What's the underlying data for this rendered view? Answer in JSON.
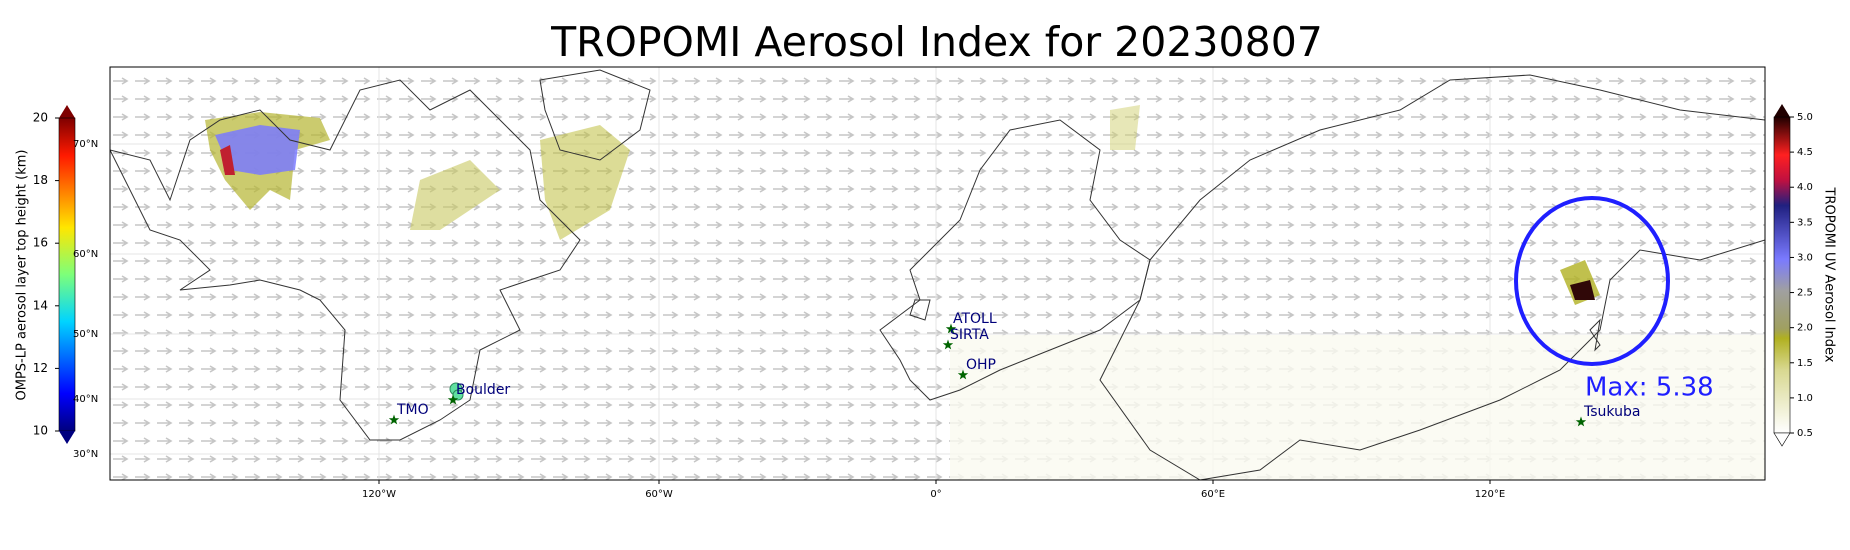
{
  "title": "TROPOMI Aerosol Index for 20230807",
  "left_colorbar": {
    "label": "OMPS-LP aerosol layer top height (km)",
    "ticks": [
      "10",
      "12",
      "14",
      "16",
      "18",
      "20"
    ]
  },
  "right_colorbar": {
    "label": "TROPOMI UV Aerosol Index",
    "ticks": [
      "0.5",
      "1.0",
      "1.5",
      "2.0",
      "2.5",
      "3.0",
      "3.5",
      "4.0",
      "4.5",
      "5.0"
    ]
  },
  "lon_labels": [
    "120°W",
    "60°W",
    "0°",
    "60°E",
    "120°E"
  ],
  "lat_labels": [
    "70°N",
    "60°N",
    "50°N",
    "40°N",
    "30°N"
  ],
  "stations": [
    "TMO",
    "Boulder",
    "ATOLL",
    "SIRTA",
    "OHP",
    "Tsukuba"
  ],
  "annotation": "Max: 5.38"
}
